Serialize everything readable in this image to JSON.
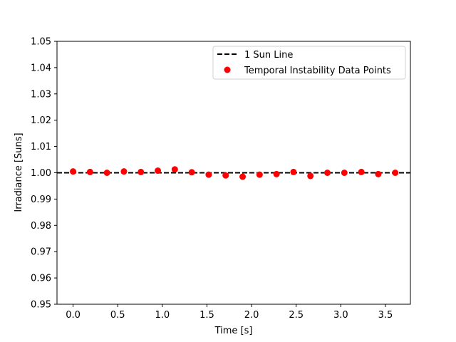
{
  "chart_data": {
    "type": "scatter",
    "xlabel": "Time [s]",
    "ylabel": "Irradiance [Suns]",
    "xlim": [
      -0.18,
      3.78
    ],
    "ylim": [
      0.95,
      1.05
    ],
    "xticks": [
      0.0,
      0.5,
      1.0,
      1.5,
      2.0,
      2.5,
      3.0,
      3.5
    ],
    "xtick_labels": [
      "0.0",
      "0.5",
      "1.0",
      "1.5",
      "2.0",
      "2.5",
      "3.0",
      "3.5"
    ],
    "yticks": [
      0.95,
      0.96,
      0.97,
      0.98,
      0.99,
      1.0,
      1.01,
      1.02,
      1.03,
      1.04,
      1.05
    ],
    "ytick_labels": [
      "0.95",
      "0.96",
      "0.97",
      "0.98",
      "0.99",
      "1.00",
      "1.01",
      "1.02",
      "1.03",
      "1.04",
      "1.05"
    ],
    "grid": false,
    "legend_position": "upper-right",
    "reference_line": {
      "name": "1 Sun Line",
      "y": 1.0,
      "style": "dashed",
      "color": "#000000"
    },
    "series": [
      {
        "name": "Temporal Instability Data Points",
        "color": "#ff0000",
        "x": [
          0.0,
          0.19,
          0.38,
          0.57,
          0.76,
          0.95,
          1.14,
          1.33,
          1.52,
          1.71,
          1.9,
          2.09,
          2.28,
          2.47,
          2.66,
          2.85,
          3.04,
          3.23,
          3.42,
          3.61
        ],
        "y": [
          1.0005,
          1.0003,
          1.0,
          1.0005,
          1.0003,
          1.0008,
          1.0013,
          1.0002,
          0.9993,
          0.999,
          0.9985,
          0.9993,
          0.9995,
          1.0003,
          0.9988,
          1.0,
          1.0,
          1.0003,
          0.9995,
          1.0
        ]
      }
    ]
  }
}
